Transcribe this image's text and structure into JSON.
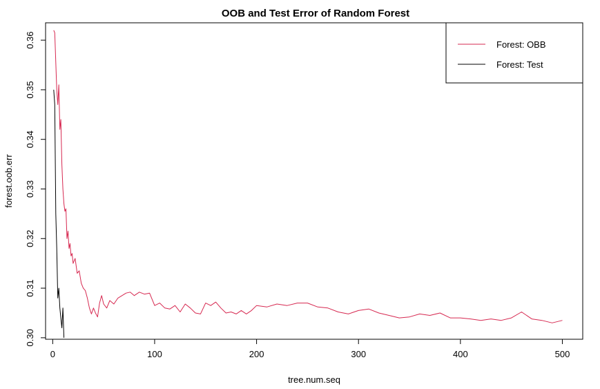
{
  "chart_data": {
    "type": "line",
    "title": "OOB and Test Error of Random Forest",
    "xlabel": "tree.num.seq",
    "ylabel": "forest.oob.err",
    "xlim": [
      -7,
      520
    ],
    "ylim": [
      0.2997,
      0.3635
    ],
    "xticks": [
      0,
      100,
      200,
      300,
      400,
      500
    ],
    "yticks": [
      0.3,
      0.31,
      0.32,
      0.33,
      0.34,
      0.35,
      0.36
    ],
    "ytick_labels": [
      "0.30",
      "0.31",
      "0.32",
      "0.33",
      "0.34",
      "0.35",
      "0.36"
    ],
    "grid": false,
    "legend": {
      "position": "top-right",
      "entries": [
        {
          "name": "Forest: OBB",
          "color": "#d6274f"
        },
        {
          "name": "Forest: Test",
          "color": "#000000"
        }
      ]
    },
    "series": [
      {
        "name": "Forest: OBB",
        "color": "#d6274f",
        "x": [
          1,
          2,
          3,
          4,
          5,
          6,
          7,
          8,
          9,
          10,
          11,
          12,
          13,
          14,
          15,
          16,
          17,
          18,
          19,
          20,
          22,
          24,
          26,
          28,
          30,
          32,
          34,
          36,
          38,
          40,
          42,
          44,
          46,
          48,
          50,
          53,
          56,
          60,
          64,
          68,
          72,
          76,
          80,
          85,
          90,
          95,
          100,
          105,
          110,
          115,
          120,
          125,
          130,
          135,
          140,
          145,
          150,
          155,
          160,
          165,
          170,
          175,
          180,
          185,
          190,
          195,
          200,
          210,
          220,
          230,
          240,
          250,
          260,
          270,
          280,
          290,
          300,
          310,
          320,
          330,
          340,
          350,
          360,
          370,
          380,
          390,
          400,
          410,
          420,
          430,
          440,
          450,
          460,
          470,
          480,
          490,
          500
        ],
        "y": [
          0.362,
          0.3615,
          0.3555,
          0.35,
          0.347,
          0.351,
          0.342,
          0.344,
          0.335,
          0.33,
          0.327,
          0.3255,
          0.326,
          0.32,
          0.3215,
          0.318,
          0.319,
          0.3165,
          0.317,
          0.315,
          0.316,
          0.313,
          0.3135,
          0.311,
          0.31,
          0.3095,
          0.308,
          0.306,
          0.3048,
          0.306,
          0.305,
          0.3042,
          0.307,
          0.3085,
          0.3068,
          0.306,
          0.3075,
          0.3068,
          0.308,
          0.3085,
          0.309,
          0.3092,
          0.3085,
          0.3092,
          0.3088,
          0.309,
          0.3065,
          0.307,
          0.306,
          0.3058,
          0.3065,
          0.3052,
          0.3068,
          0.306,
          0.305,
          0.3048,
          0.307,
          0.3065,
          0.3072,
          0.306,
          0.305,
          0.3052,
          0.3048,
          0.3055,
          0.3048,
          0.3055,
          0.3065,
          0.3062,
          0.3068,
          0.3065,
          0.307,
          0.307,
          0.3062,
          0.306,
          0.3052,
          0.3048,
          0.3055,
          0.3058,
          0.305,
          0.3045,
          0.304,
          0.3042,
          0.3048,
          0.3045,
          0.305,
          0.304,
          0.304,
          0.3038,
          0.3035,
          0.3038,
          0.3035,
          0.304,
          0.3052,
          0.3038,
          0.3035,
          0.303,
          0.3035
        ]
      },
      {
        "name": "Forest: Test",
        "color": "#000000",
        "x": [
          1,
          2,
          3,
          4,
          5,
          6,
          7,
          8,
          9,
          10,
          11
        ],
        "y": [
          0.35,
          0.347,
          0.325,
          0.318,
          0.308,
          0.31,
          0.306,
          0.304,
          0.302,
          0.306,
          0.3
        ]
      }
    ]
  }
}
